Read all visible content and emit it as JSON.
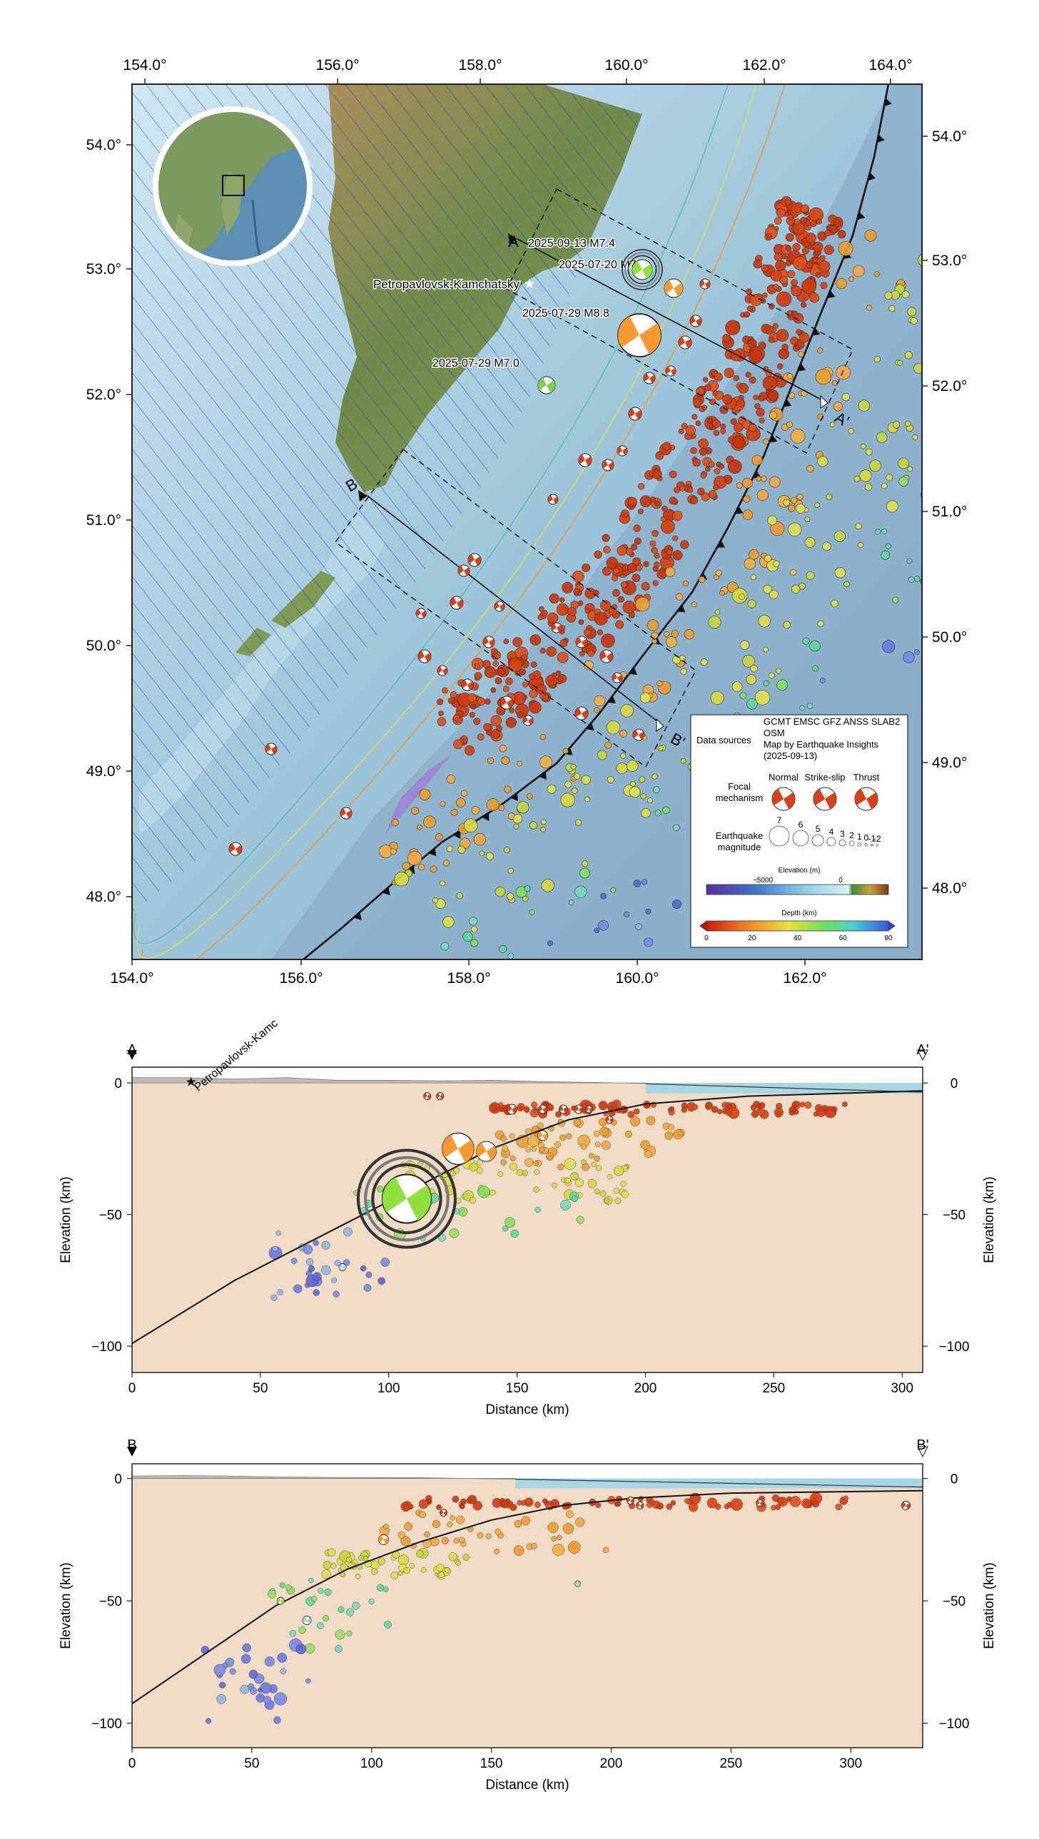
{
  "map": {
    "lon_ticks": [
      "154.0°",
      "156.0°",
      "158.0°",
      "160.0°",
      "162.0°",
      "164.0°"
    ],
    "lat_ticks": [
      "54.0°",
      "53.0°",
      "52.0°",
      "51.0°",
      "50.0°",
      "49.0°",
      "48.0°"
    ],
    "city": "Petropavlovsk-Kamchatsky",
    "quake_labels": [
      {
        "text": "2025-09-13 M7.4"
      },
      {
        "text": "2025-07-20 M7.4"
      },
      {
        "text": "2025-07-29 M8.8"
      },
      {
        "text": "2025-07-29 M7.0"
      }
    ],
    "section_labels": {
      "a": "A",
      "a_prime": "A'",
      "b": "B",
      "b_prime": "B'"
    }
  },
  "legend": {
    "data_sources_label": "Data sources",
    "data_sources_text": [
      "GCMT EMSC GFZ ANSS SLAB2",
      "OSM",
      "Map by Earthquake Insights",
      "(2025-09-13)"
    ],
    "focal_label": [
      "Focal",
      "mechanism"
    ],
    "focal_types": [
      "Normal",
      "Strike-slip",
      "Thrust"
    ],
    "magnitude_label": [
      "Earthquake",
      "magnitude"
    ],
    "magnitudes": [
      "7",
      "6",
      "5",
      "4",
      "3",
      "2",
      "1",
      "0",
      "-1",
      "-2"
    ],
    "elevation_title": "Elevation (m)",
    "elevation_ticks": [
      "−5000",
      "0"
    ],
    "depth_title": "Depth (km)",
    "depth_ticks": [
      "0",
      "20",
      "40",
      "60",
      "80"
    ],
    "colors": {
      "shallow": "#d43a10",
      "mid": "#e3d84a",
      "deep": "#4a5fd0",
      "thrust": "#d9401a",
      "yellow_fm": "#8fe03a",
      "orange_fm": "#f59a32"
    }
  },
  "chart_data": [
    {
      "type": "scatter",
      "title": "",
      "section_start": "A",
      "section_end": "A'",
      "xlabel": "Distance (km)",
      "ylabel": "Elevation (km)",
      "xlim": [
        0,
        308
      ],
      "ylim": [
        -110,
        6
      ],
      "x_ticks": [
        0,
        50,
        100,
        150,
        200,
        250,
        300
      ],
      "y_ticks": [
        0,
        -50,
        -100
      ],
      "city_label": "Petropavlovsk-Kamc",
      "city_x": 23,
      "slab": [
        [
          0,
          -99
        ],
        [
          40,
          -75
        ],
        [
          80,
          -55
        ],
        [
          110,
          -40
        ],
        [
          140,
          -25
        ],
        [
          170,
          -14
        ],
        [
          200,
          -8
        ],
        [
          240,
          -5
        ],
        [
          308,
          -3
        ]
      ],
      "topo": [
        [
          0,
          2
        ],
        [
          20,
          2
        ],
        [
          40,
          1.5
        ],
        [
          60,
          2
        ],
        [
          80,
          1
        ],
        [
          100,
          1
        ],
        [
          120,
          0.8
        ],
        [
          140,
          1
        ],
        [
          160,
          0.5
        ],
        [
          180,
          0.2
        ],
        [
          200,
          -0.2
        ]
      ],
      "focal_mechanisms": [
        {
          "x": 107,
          "y": -44,
          "size": 34,
          "color": "#8fe03a",
          "rings": true
        },
        {
          "x": 127,
          "y": -25,
          "size": 22,
          "color": "#f59a32"
        },
        {
          "x": 138,
          "y": -26,
          "size": 14,
          "color": "#f59a32"
        },
        {
          "x": 115,
          "y": -5,
          "size": 5,
          "color": "#d9401a"
        },
        {
          "x": 120,
          "y": -5,
          "size": 5,
          "color": "#d9401a"
        },
        {
          "x": 148,
          "y": -10,
          "size": 7,
          "color": "#d9401a"
        },
        {
          "x": 160,
          "y": -10,
          "size": 6,
          "color": "#d9401a"
        },
        {
          "x": 168,
          "y": -10,
          "size": 6,
          "color": "#d9401a"
        },
        {
          "x": 174,
          "y": -10,
          "size": 6,
          "color": "#d9401a"
        },
        {
          "x": 160,
          "y": -20,
          "size": 7,
          "color": "#f59a32"
        },
        {
          "x": 186,
          "y": -14,
          "size": 5,
          "color": "#d9401a"
        },
        {
          "x": 82,
          "y": -70,
          "size": 5,
          "color": "#8fd0e0"
        },
        {
          "x": 178,
          "y": -10,
          "size": 5,
          "color": "#d9401a"
        }
      ],
      "quake_clusters": [
        {
          "x_range": [
            140,
            278
          ],
          "y_range": [
            -12,
            -8
          ],
          "n": 90,
          "depth_color": "shallow"
        },
        {
          "x_range": [
            140,
            215
          ],
          "y_range": [
            -32,
            -14
          ],
          "n": 60,
          "depth_color": "orange"
        },
        {
          "x_range": [
            105,
            195
          ],
          "y_range": [
            -45,
            -30
          ],
          "n": 60,
          "depth_color": "yellow"
        },
        {
          "x_range": [
            85,
            175
          ],
          "y_range": [
            -60,
            -40
          ],
          "n": 25,
          "depth_color": "green"
        },
        {
          "x_range": [
            55,
            100
          ],
          "y_range": [
            -82,
            -55
          ],
          "n": 30,
          "depth_color": "deep"
        }
      ]
    },
    {
      "type": "scatter",
      "title": "",
      "section_start": "B",
      "section_end": "B'",
      "xlabel": "Distance (km)",
      "ylabel": "Elevation (km)",
      "xlim": [
        0,
        330
      ],
      "ylim": [
        -110,
        6
      ],
      "x_ticks": [
        0,
        50,
        100,
        150,
        200,
        250,
        300
      ],
      "y_ticks": [
        0,
        -50,
        -100
      ],
      "slab": [
        [
          0,
          -92
        ],
        [
          30,
          -72
        ],
        [
          60,
          -52
        ],
        [
          90,
          -37
        ],
        [
          120,
          -26
        ],
        [
          150,
          -17
        ],
        [
          180,
          -11
        ],
        [
          210,
          -8
        ],
        [
          250,
          -6
        ],
        [
          330,
          -5
        ]
      ],
      "topo": [
        [
          0,
          1
        ],
        [
          20,
          1.2
        ],
        [
          40,
          1
        ],
        [
          60,
          0.6
        ],
        [
          90,
          0.4
        ],
        [
          120,
          0.3
        ],
        [
          140,
          0
        ],
        [
          160,
          -0.3
        ]
      ],
      "focal_mechanisms": [
        {
          "x": 105,
          "y": -25,
          "size": 7,
          "color": "#f59a32"
        },
        {
          "x": 62,
          "y": -50,
          "size": 5,
          "color": "#8fe03a"
        },
        {
          "x": 73,
          "y": -58,
          "size": 6,
          "color": "#8fd0e0"
        },
        {
          "x": 130,
          "y": -14,
          "size": 5,
          "color": "#d9401a"
        },
        {
          "x": 186,
          "y": -43,
          "size": 4,
          "color": "#8fe03a"
        },
        {
          "x": 208,
          "y": -9,
          "size": 5,
          "color": "#d9401a"
        },
        {
          "x": 212,
          "y": -11,
          "size": 5,
          "color": "#d9401a"
        },
        {
          "x": 262,
          "y": -10,
          "size": 5,
          "color": "#d9401a"
        },
        {
          "x": 323,
          "y": -11,
          "size": 6,
          "color": "#d9401a"
        }
      ],
      "quake_clusters": [
        {
          "x_range": [
            110,
            300
          ],
          "y_range": [
            -12,
            -8
          ],
          "n": 80,
          "depth_color": "shallow"
        },
        {
          "x_range": [
            100,
            200
          ],
          "y_range": [
            -30,
            -14
          ],
          "n": 40,
          "depth_color": "orange"
        },
        {
          "x_range": [
            80,
            140
          ],
          "y_range": [
            -40,
            -30
          ],
          "n": 50,
          "depth_color": "yellow"
        },
        {
          "x_range": [
            55,
            110
          ],
          "y_range": [
            -70,
            -40
          ],
          "n": 25,
          "depth_color": "green"
        },
        {
          "x_range": [
            30,
            75
          ],
          "y_range": [
            -100,
            -68
          ],
          "n": 30,
          "depth_color": "deep"
        }
      ]
    }
  ]
}
